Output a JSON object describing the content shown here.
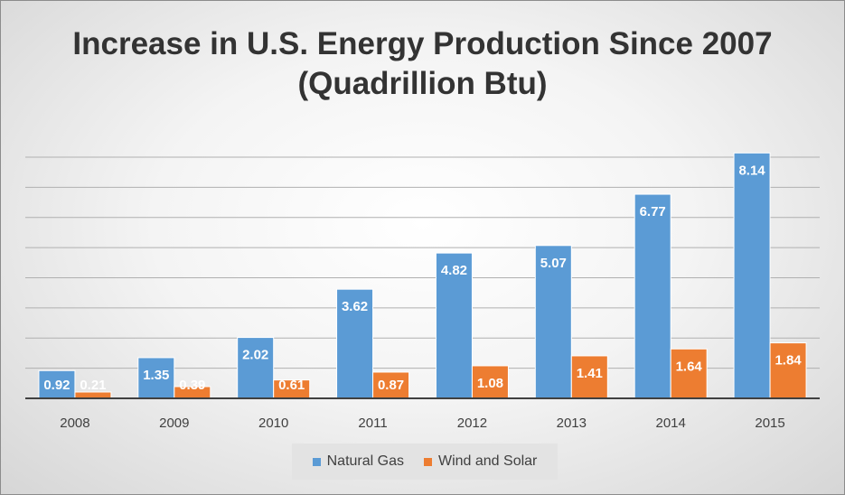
{
  "chart_data": {
    "type": "bar",
    "title": "Increase in U.S. Energy Production Since 2007",
    "subtitle": "(Quadrillion Btu)",
    "categories": [
      "2008",
      "2009",
      "2010",
      "2011",
      "2012",
      "2013",
      "2014",
      "2015"
    ],
    "series": [
      {
        "name": "Natural Gas",
        "color": "#5b9bd5",
        "values": [
          0.92,
          1.35,
          2.02,
          3.62,
          4.82,
          5.07,
          6.77,
          8.14
        ]
      },
      {
        "name": "Wind and Solar",
        "color": "#ed7d31",
        "values": [
          0.21,
          0.39,
          0.61,
          0.87,
          1.08,
          1.41,
          1.64,
          1.84
        ]
      }
    ],
    "ylim": [
      0,
      8
    ],
    "grid": true,
    "y_tick_labels_shown": false,
    "legend_position": "bottom"
  }
}
